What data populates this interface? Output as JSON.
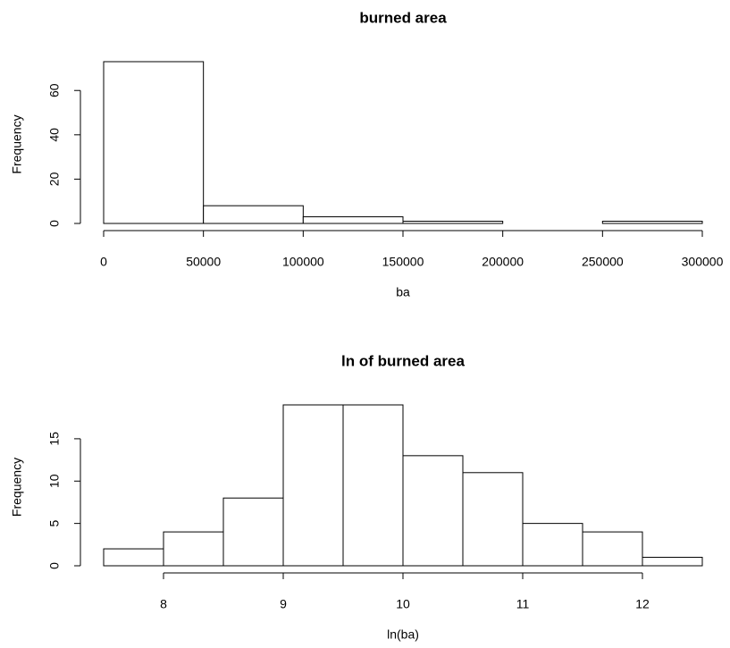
{
  "chart_data": [
    {
      "type": "histogram",
      "title": "burned area",
      "x_label": "ba",
      "y_label": "Frequency",
      "bins": [
        0,
        50000,
        100000,
        150000,
        200000,
        250000,
        300000
      ],
      "values": [
        73,
        8,
        3,
        1,
        0,
        1
      ],
      "xlim": [
        0,
        300000
      ],
      "ylim": [
        0,
        73
      ],
      "xticks": [
        0,
        50000,
        100000,
        150000,
        200000,
        250000,
        300000
      ],
      "yticks": [
        0,
        20,
        40,
        60
      ],
      "color": "#ffffff"
    },
    {
      "type": "histogram",
      "title": "ln of burned area",
      "x_label": "ln(ba)",
      "y_label": "Frequency",
      "bins": [
        7.5,
        8,
        8.5,
        9,
        9.5,
        10,
        10.5,
        11,
        11.5,
        12,
        12.5
      ],
      "values": [
        2,
        4,
        8,
        19,
        19,
        13,
        11,
        5,
        4,
        1
      ],
      "xlim": [
        7.5,
        12.5
      ],
      "ylim": [
        0,
        19
      ],
      "xticks": [
        8,
        9,
        10,
        11,
        12
      ],
      "yticks": [
        0,
        5,
        10,
        15
      ],
      "color": "#ffffff"
    }
  ]
}
